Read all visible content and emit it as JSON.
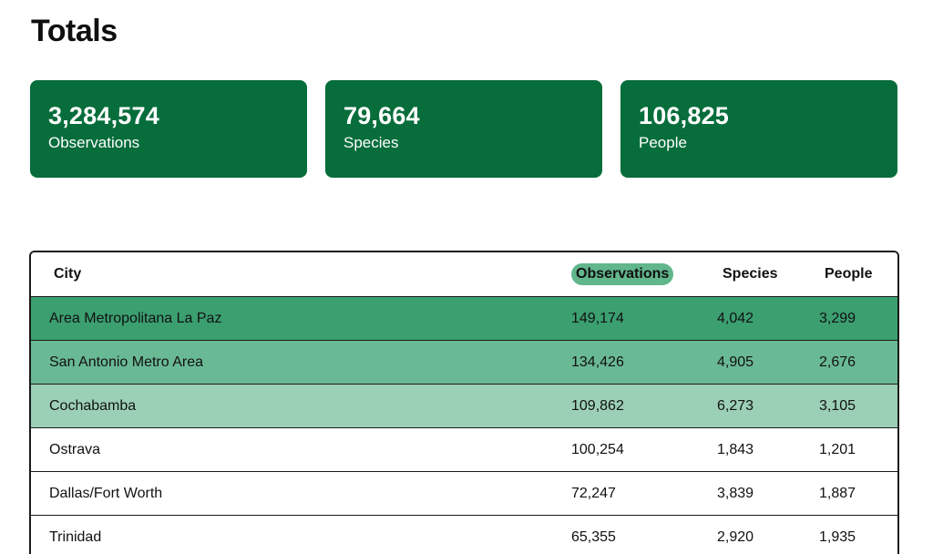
{
  "title": "Totals",
  "cards": [
    {
      "value": "3,284,574",
      "label": "Observations"
    },
    {
      "value": "79,664",
      "label": "Species"
    },
    {
      "value": "106,825",
      "label": "People"
    }
  ],
  "table": {
    "headers": {
      "city": "City",
      "observations": "Observations",
      "species": "Species",
      "people": "People"
    },
    "sorted_column": "observations",
    "rows": [
      {
        "city": "Area Metropolitana La Paz",
        "observations": "149,174",
        "species": "4,042",
        "people": "3,299"
      },
      {
        "city": "San Antonio Metro Area",
        "observations": "134,426",
        "species": "4,905",
        "people": "2,676"
      },
      {
        "city": "Cochabamba",
        "observations": "109,862",
        "species": "6,273",
        "people": "3,105"
      },
      {
        "city": "Ostrava",
        "observations": "100,254",
        "species": "1,843",
        "people": "1,201"
      },
      {
        "city": "Dallas/Fort Worth",
        "observations": "72,247",
        "species": "3,839",
        "people": "1,887"
      },
      {
        "city": "Trinidad",
        "observations": "65,355",
        "species": "2,920",
        "people": "1,935"
      }
    ]
  },
  "colors": {
    "card_bg": "#066d3b",
    "row_1": "#3b9f70",
    "row_2": "#6ab995",
    "row_3": "#9cd0b6",
    "sort_pill": "#61b68c"
  }
}
